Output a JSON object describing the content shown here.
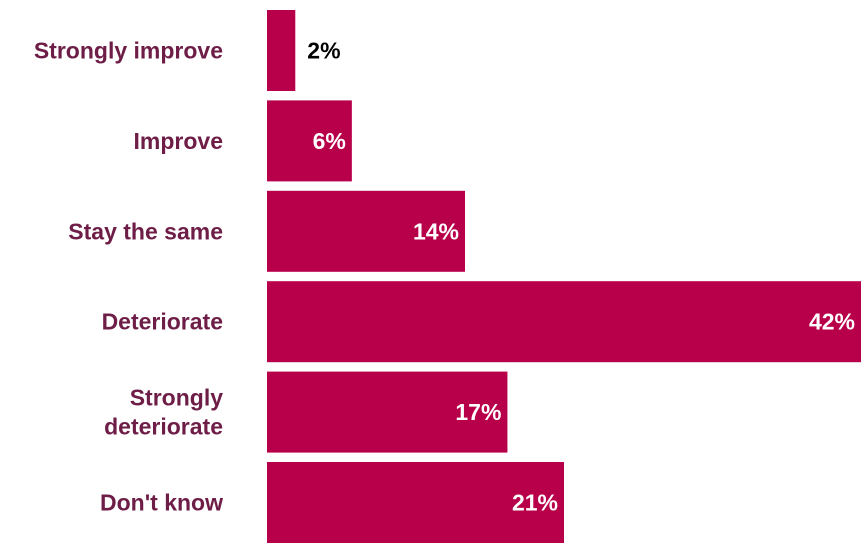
{
  "chart_data": {
    "type": "bar",
    "orientation": "horizontal",
    "categories": [
      [
        "Strongly improve"
      ],
      [
        "Improve"
      ],
      [
        "Stay the same"
      ],
      [
        "Deteriorate"
      ],
      [
        "Strongly",
        "deteriorate"
      ],
      [
        "Don't know"
      ]
    ],
    "values": [
      2,
      6,
      14,
      42,
      17,
      21
    ],
    "value_labels": [
      "2%",
      "6%",
      "14%",
      "42%",
      "17%",
      "21%"
    ],
    "title": "",
    "xlabel": "",
    "ylabel": "",
    "xlim": [
      0,
      42
    ],
    "grid": false,
    "legend": "none",
    "colors": {
      "bar": "#b8004a",
      "category_text": "#6e1d46",
      "label_inside": "#ffffff",
      "label_outside": "#000000"
    }
  }
}
